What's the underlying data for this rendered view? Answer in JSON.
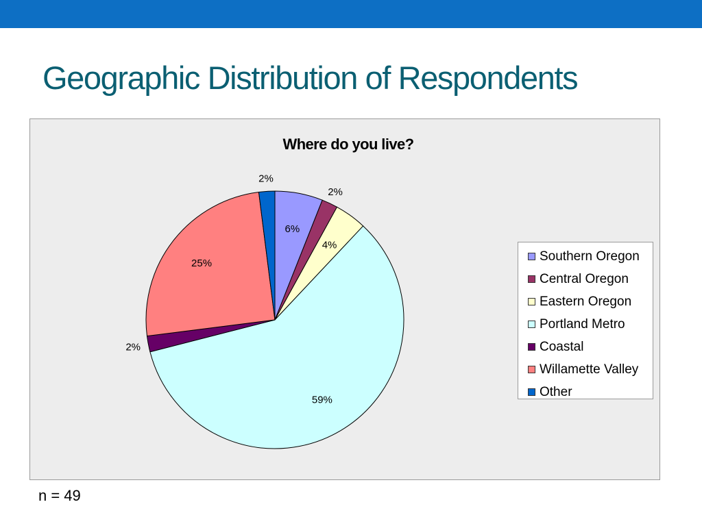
{
  "header": {
    "bar_color": "#0d6fc4"
  },
  "slide": {
    "title": "Geographic Distribution of Respondents",
    "title_color": "#0b5f72",
    "footnote": "n = 49"
  },
  "chart_data": {
    "type": "pie",
    "title": "Where do you live?",
    "legend_position": "right",
    "start_angle_deg": 0,
    "direction": "clockwise",
    "series": [
      {
        "name": "Southern Oregon",
        "value": 6,
        "label": "6%",
        "color": "#9999ff"
      },
      {
        "name": "Central Oregon",
        "value": 2,
        "label": "2%",
        "color": "#993366"
      },
      {
        "name": "Eastern Oregon",
        "value": 4,
        "label": "4%",
        "color": "#ffffcc"
      },
      {
        "name": "Portland Metro",
        "value": 59,
        "label": "59%",
        "color": "#ccffff"
      },
      {
        "name": "Coastal",
        "value": 2,
        "label": "2%",
        "color": "#660066"
      },
      {
        "name": "Willamette Valley",
        "value": 25,
        "label": "25%",
        "color": "#ff8080"
      },
      {
        "name": "Other",
        "value": 2,
        "label": "2%",
        "color": "#0066cc"
      }
    ]
  }
}
